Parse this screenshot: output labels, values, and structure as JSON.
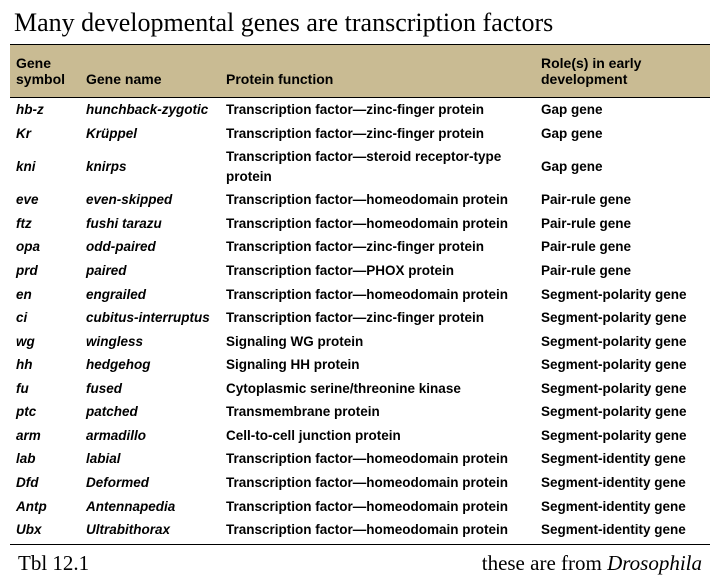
{
  "title": "Many developmental genes are transcription factors",
  "footer_left": "Tbl 12.1",
  "footer_right_prefix": "these are from ",
  "footer_right_italic": "Drosophila",
  "columns": [
    "Gene symbol",
    "Gene name",
    "Protein function",
    "Role(s) in early development"
  ],
  "header_bg": "#c9bb93",
  "rows": [
    {
      "sym": "hb-z",
      "name": "hunchback-zygotic",
      "func": "Transcription factor—zinc-finger protein",
      "role": "Gap gene"
    },
    {
      "sym": "Kr",
      "name": "Krüppel",
      "func": "Transcription factor—zinc-finger protein",
      "role": "Gap gene"
    },
    {
      "sym": "kni",
      "name": "knirps",
      "func": "Transcription factor—steroid receptor-type protein",
      "role": "Gap gene"
    },
    {
      "sym": "eve",
      "name": "even-skipped",
      "func": "Transcription factor—homeodomain protein",
      "role": "Pair-rule gene"
    },
    {
      "sym": "ftz",
      "name": "fushi tarazu",
      "func": "Transcription factor—homeodomain protein",
      "role": "Pair-rule gene"
    },
    {
      "sym": "opa",
      "name": "odd-paired",
      "func": "Transcription factor—zinc-finger protein",
      "role": "Pair-rule gene"
    },
    {
      "sym": "prd",
      "name": "paired",
      "func": "Transcription factor—PHOX protein",
      "role": "Pair-rule gene"
    },
    {
      "sym": "en",
      "name": "engrailed",
      "func": "Transcription factor—homeodomain protein",
      "role": "Segment-polarity gene"
    },
    {
      "sym": "ci",
      "name": "cubitus-interruptus",
      "func": "Transcription factor—zinc-finger protein",
      "role": "Segment-polarity gene"
    },
    {
      "sym": "wg",
      "name": "wingless",
      "func": "Signaling WG protein",
      "role": "Segment-polarity gene"
    },
    {
      "sym": "hh",
      "name": "hedgehog",
      "func": "Signaling HH protein",
      "role": "Segment-polarity gene"
    },
    {
      "sym": "fu",
      "name": "fused",
      "func": "Cytoplasmic serine/threonine kinase",
      "role": "Segment-polarity gene"
    },
    {
      "sym": "ptc",
      "name": "patched",
      "func": "Transmembrane protein",
      "role": "Segment-polarity gene"
    },
    {
      "sym": "arm",
      "name": "armadillo",
      "func": "Cell-to-cell junction protein",
      "role": "Segment-polarity gene"
    },
    {
      "sym": "lab",
      "name": "labial",
      "func": "Transcription factor—homeodomain protein",
      "role": "Segment-identity gene"
    },
    {
      "sym": "Dfd",
      "name": "Deformed",
      "func": "Transcription factor—homeodomain protein",
      "role": "Segment-identity gene"
    },
    {
      "sym": "Antp",
      "name": "Antennapedia",
      "func": "Transcription factor—homeodomain protein",
      "role": "Segment-identity gene"
    },
    {
      "sym": "Ubx",
      "name": "Ultrabithorax",
      "func": "Transcription factor—homeodomain protein",
      "role": "Segment-identity gene"
    }
  ]
}
